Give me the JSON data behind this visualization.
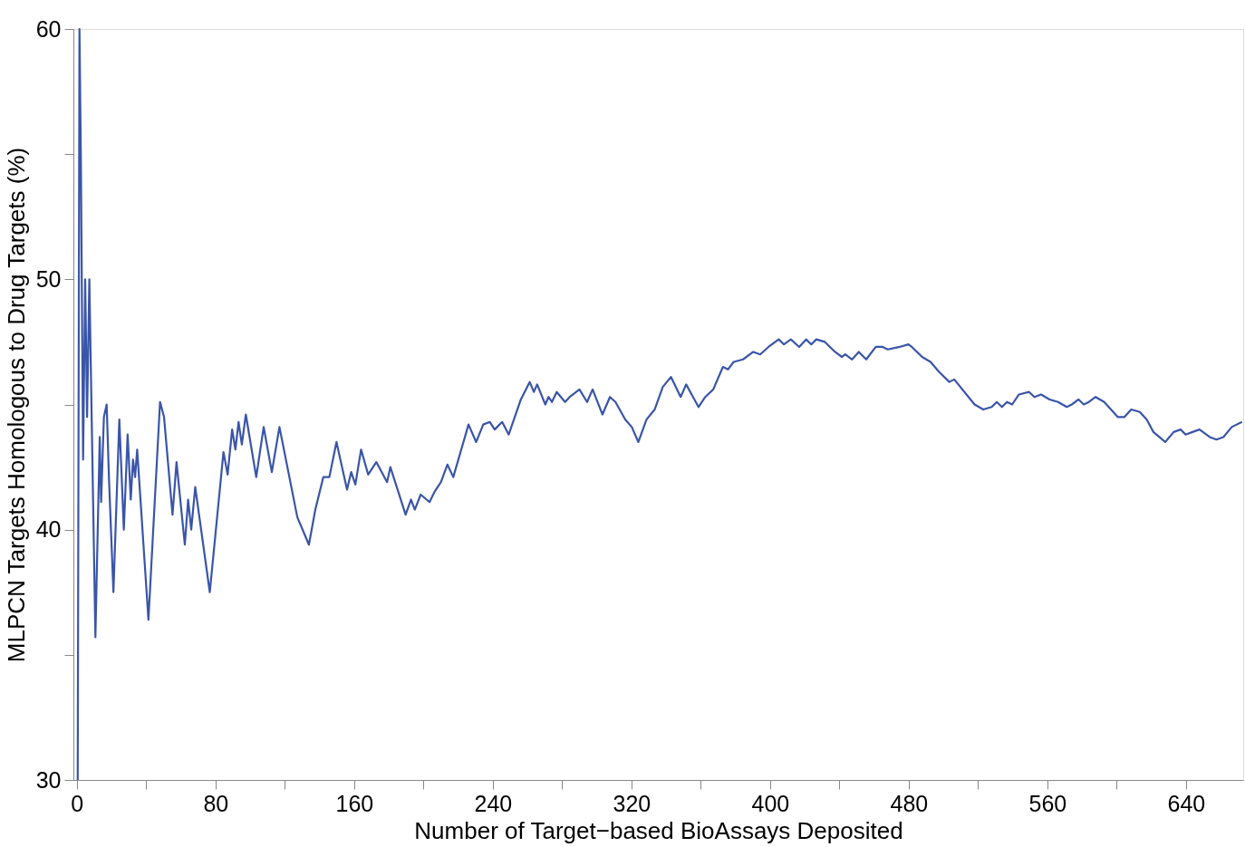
{
  "chart_data": {
    "type": "line",
    "xlabel": "Number of Target−based BioAssays Deposited",
    "ylabel": "MLPCN Targets Homologous to Drug Targets (%)",
    "xlim": [
      -2,
      673
    ],
    "ylim": [
      30,
      60
    ],
    "xticks": [
      0,
      {
        "value": 40,
        "label": null
      },
      80,
      {
        "value": 120,
        "label": null
      },
      160,
      {
        "value": 200,
        "label": null
      },
      240,
      {
        "value": 280,
        "label": null
      },
      320,
      {
        "value": 360,
        "label": null
      },
      400,
      {
        "value": 440,
        "label": null
      },
      480,
      {
        "value": 520,
        "label": null
      },
      560,
      {
        "value": 600,
        "label": null
      },
      640
    ],
    "yticks": [
      30,
      {
        "value": 35,
        "label": null
      },
      40,
      {
        "value": 45,
        "label": null
      },
      50,
      {
        "value": 55,
        "label": null
      },
      60
    ],
    "grid": false,
    "legend": false,
    "marker": "none",
    "line_style": "solid",
    "series": [
      {
        "color": "#3a55a8",
        "x": [
          0.5,
          1.5,
          2.3,
          3.6,
          4.8,
          5.9,
          7.2,
          10.7,
          13.2,
          14,
          15.6,
          17.2,
          18.5,
          21.1,
          24.5,
          27.1,
          29.3,
          31.1,
          32.4,
          33.6,
          34.8,
          41.3,
          48,
          50.3,
          55.2,
          57.5,
          62.3,
          64.2,
          66,
          68.3,
          76.7,
          84.6,
          87,
          89.6,
          91.5,
          93.3,
          95.2,
          97.5,
          103.5,
          107.8,
          112.5,
          116.9,
          127.2,
          133.9,
          137.6,
          142.2,
          145.7,
          149.8,
          155.9,
          158.3,
          160.7,
          164,
          168.1,
          172.8,
          179,
          180.9,
          189.7,
          192.8,
          195,
          198.4,
          203.5,
          206.3,
          210.1,
          213.8,
          217.2,
          226,
          230.4,
          234.5,
          238.3,
          241.1,
          245.4,
          249.2,
          256.2,
          261.3,
          263.7,
          265.6,
          270.3,
          272.2,
          274.1,
          276.9,
          281.7,
          284.4,
          290,
          294.4,
          297.6,
          303.3,
          307.6,
          310.8,
          316.4,
          320.2,
          324,
          328.7,
          333.4,
          338.1,
          342.8,
          348.4,
          351.6,
          358.7,
          362.6,
          367.2,
          372.8,
          375.7,
          379,
          384.4,
          390.3,
          394.3,
          399.1,
          405,
          408,
          412,
          416.8,
          420.8,
          423.8,
          426.7,
          431.6,
          437.5,
          441.4,
          443.4,
          447.3,
          451.2,
          455.5,
          461,
          465,
          467.9,
          474.8,
          479.8,
          481.8,
          487.7,
          492.6,
          497.5,
          503.4,
          506.3,
          518,
          523,
          527.9,
          530.8,
          533.8,
          536.7,
          539.7,
          543.6,
          549.5,
          552.5,
          556.4,
          561.3,
          566.2,
          571.2,
          574.1,
          578,
          581,
          584,
          587.8,
          592.8,
          600.6,
          604.5,
          608.4,
          613.3,
          617.3,
          621.2,
          628,
          632.9,
          636.9,
          639.8,
          643.8,
          647.8,
          653.7,
          657.6,
          661.6,
          666.4,
          672.3
        ],
        "values": [
          30,
          60,
          55,
          42.8,
          50,
          44.5,
          50,
          35.7,
          43.7,
          41.1,
          44.5,
          45,
          42.1,
          37.5,
          44.4,
          40,
          43.8,
          41.2,
          42.8,
          42.1,
          43.2,
          36.4,
          45.1,
          44.5,
          40.6,
          42.7,
          39.4,
          41.2,
          40,
          41.7,
          37.5,
          43.1,
          42.2,
          44,
          43.2,
          44.3,
          43.4,
          44.6,
          42.1,
          44.1,
          42.3,
          44.1,
          40.5,
          39.4,
          40.8,
          42.1,
          42.1,
          43.5,
          41.6,
          42.3,
          41.8,
          43.2,
          42.2,
          42.7,
          41.9,
          42.5,
          40.6,
          41.2,
          40.8,
          41.4,
          41.1,
          41.5,
          41.9,
          42.6,
          42.1,
          44.2,
          43.5,
          44.2,
          44.3,
          44,
          44.3,
          43.8,
          45.2,
          45.9,
          45.5,
          45.8,
          45,
          45.3,
          45.1,
          45.5,
          45.1,
          45.3,
          45.6,
          45.1,
          45.6,
          44.6,
          45.3,
          45.1,
          44.4,
          44.1,
          43.5,
          44.4,
          44.8,
          45.7,
          46.1,
          45.3,
          45.8,
          44.9,
          45.3,
          45.6,
          46.5,
          46.4,
          46.7,
          46.8,
          47.1,
          47,
          47.3,
          47.6,
          47.4,
          47.6,
          47.3,
          47.6,
          47.4,
          47.6,
          47.5,
          47.1,
          46.9,
          47,
          46.8,
          47.1,
          46.8,
          47.3,
          47.3,
          47.2,
          47.3,
          47.4,
          47.3,
          46.9,
          46.7,
          46.3,
          45.9,
          46,
          45,
          44.8,
          44.9,
          45.1,
          44.9,
          45.1,
          45,
          45.4,
          45.5,
          45.3,
          45.4,
          45.2,
          45.1,
          44.9,
          45,
          45.2,
          45,
          45.1,
          45.3,
          45.1,
          44.5,
          44.5,
          44.8,
          44.7,
          44.4,
          43.9,
          43.5,
          43.9,
          44,
          43.8,
          43.9,
          44,
          43.7,
          43.6,
          43.7,
          44.1,
          44.3
        ]
      }
    ]
  }
}
